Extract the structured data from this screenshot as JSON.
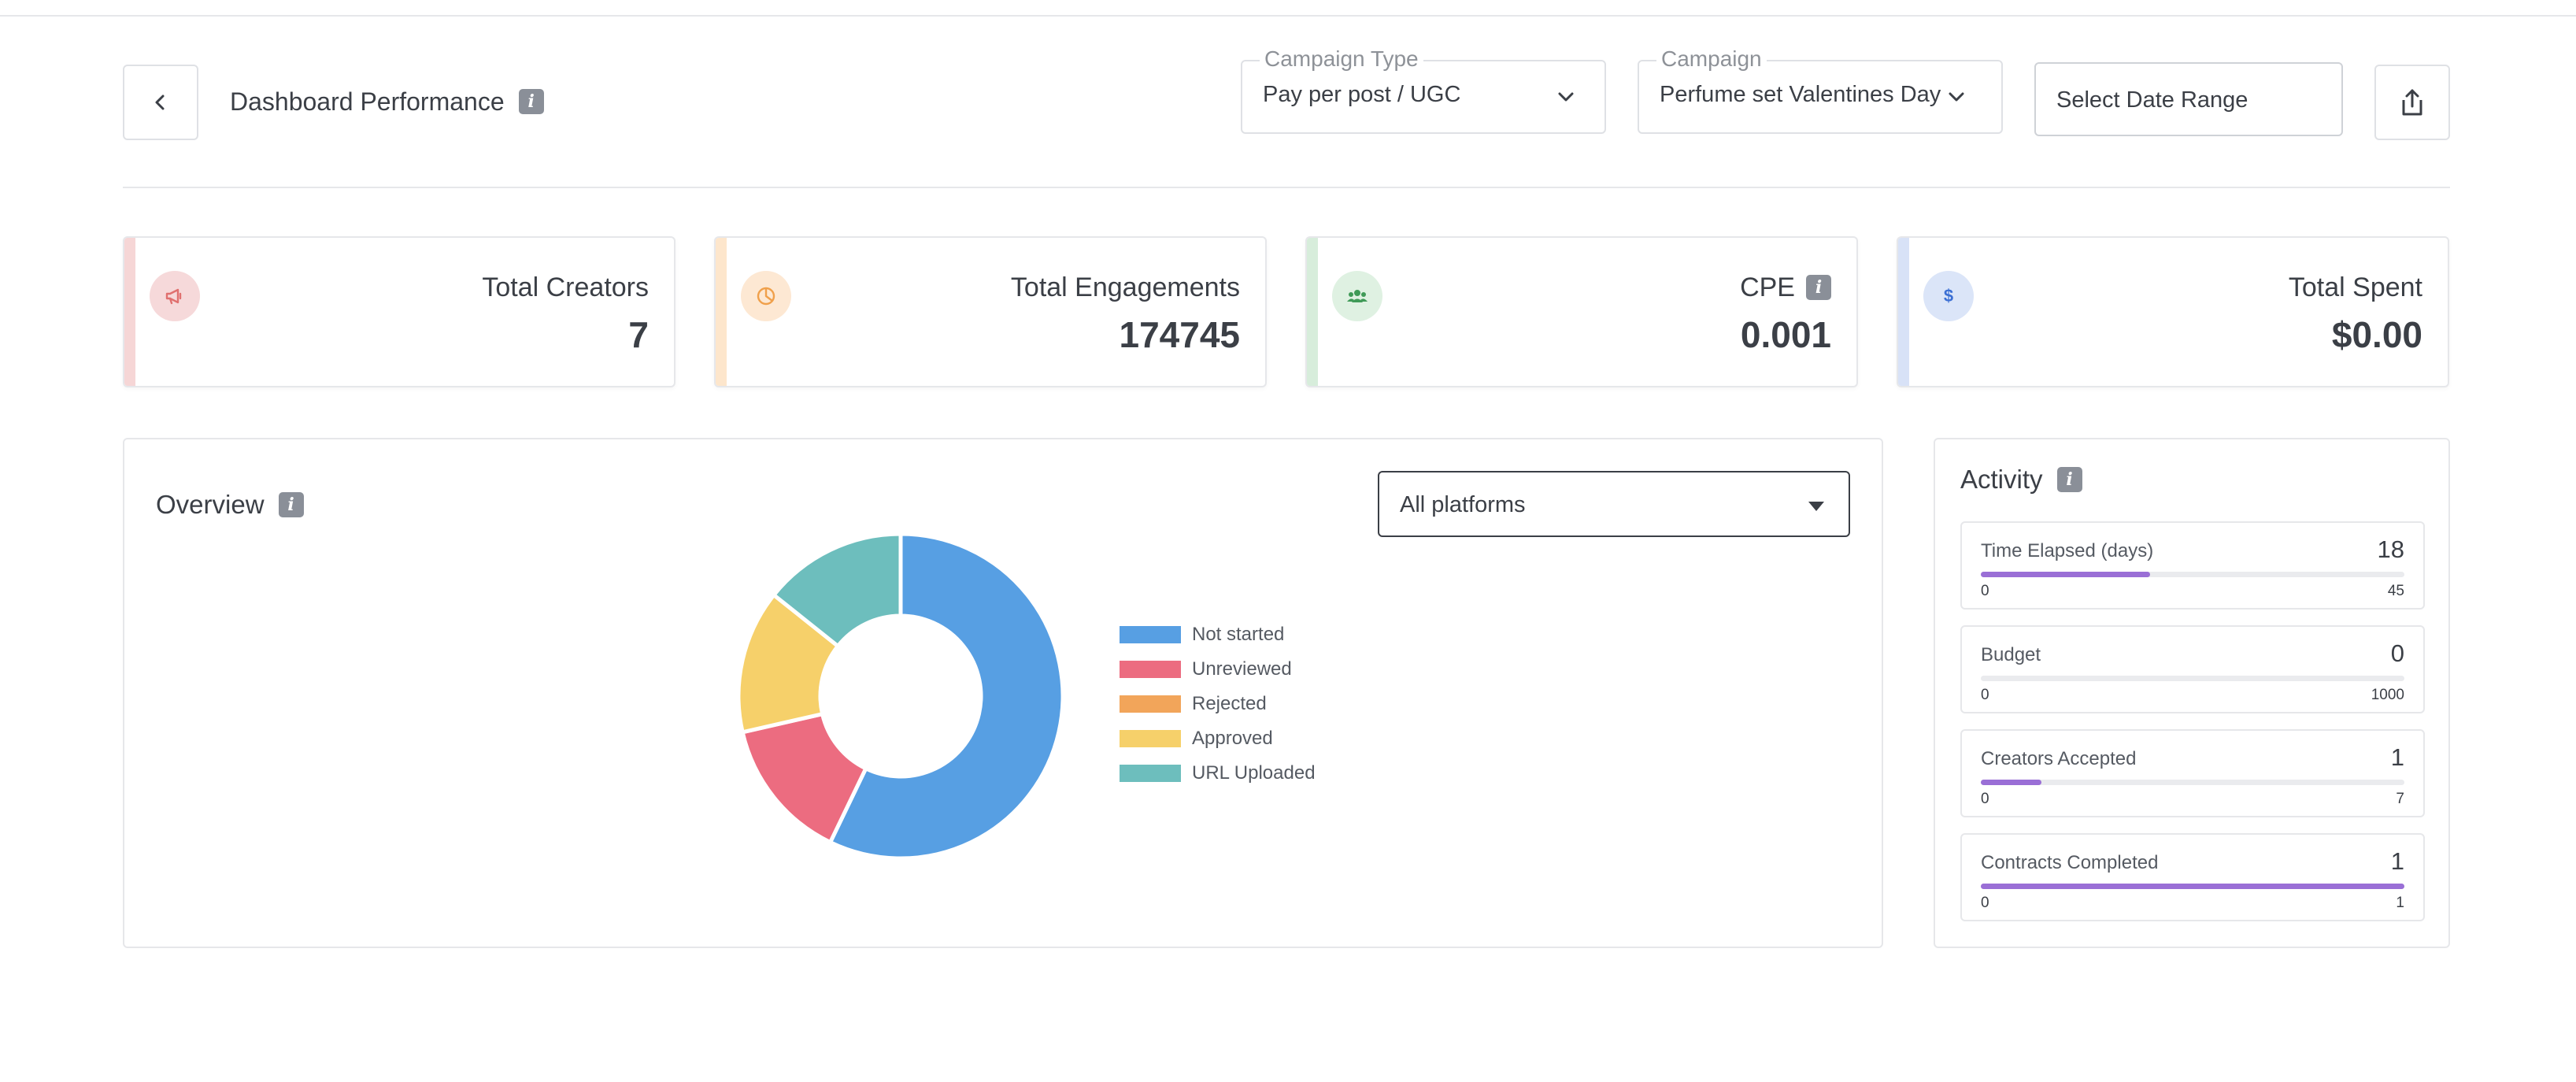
{
  "header": {
    "title": "Dashboard Performance",
    "info_icon": "i",
    "campaign_type": {
      "label": "Campaign Type",
      "value": "Pay per post / UGC"
    },
    "campaign": {
      "label": "Campaign",
      "value": "Perfume set Valentines Day"
    },
    "date_range": {
      "placeholder": "Select Date Range"
    }
  },
  "stats": [
    {
      "label": "Total Creators",
      "value": "7",
      "icon": "megaphone-icon",
      "accent": "#f6d6d6",
      "icon_bg": "#f6d9da",
      "icon_color": "#e0706f"
    },
    {
      "label": "Total Engagements",
      "value": "174745",
      "icon": "pie-chart-icon",
      "accent": "#fde6cc",
      "icon_bg": "#fde8d3",
      "icon_color": "#f0a04b"
    },
    {
      "label": "CPE",
      "value": "0.001",
      "icon": "users-icon",
      "accent": "#d7eddb",
      "icon_bg": "#dff1e2",
      "icon_color": "#3f9a57"
    },
    {
      "label": "Total Spent",
      "value": "$0.00",
      "icon": "dollar-icon",
      "accent": "#d8e2f7",
      "icon_bg": "#dbe5f8",
      "icon_color": "#3b6fd3"
    }
  ],
  "overview": {
    "title": "Overview",
    "platform_filter": "All platforms"
  },
  "chart_data": {
    "type": "pie",
    "donut": true,
    "categories": [
      "Not started",
      "Unreviewed",
      "Rejected",
      "Approved",
      "URL Uploaded"
    ],
    "values": [
      4,
      1,
      0,
      1,
      1
    ],
    "colors": [
      "#579fe3",
      "#ec6c80",
      "#f2a55a",
      "#f6d06a",
      "#6dbebd"
    ]
  },
  "activity": {
    "title": "Activity",
    "metrics": [
      {
        "label": "Time Elapsed (days)",
        "value": "18",
        "min": "0",
        "max": "45",
        "fraction": 0.4
      },
      {
        "label": "Budget",
        "value": "0",
        "min": "0",
        "max": "1000",
        "fraction": 0
      },
      {
        "label": "Creators Accepted",
        "value": "1",
        "min": "0",
        "max": "7",
        "fraction": 0.143
      },
      {
        "label": "Contracts Completed",
        "value": "1",
        "min": "0",
        "max": "1",
        "fraction": 1
      }
    ]
  }
}
